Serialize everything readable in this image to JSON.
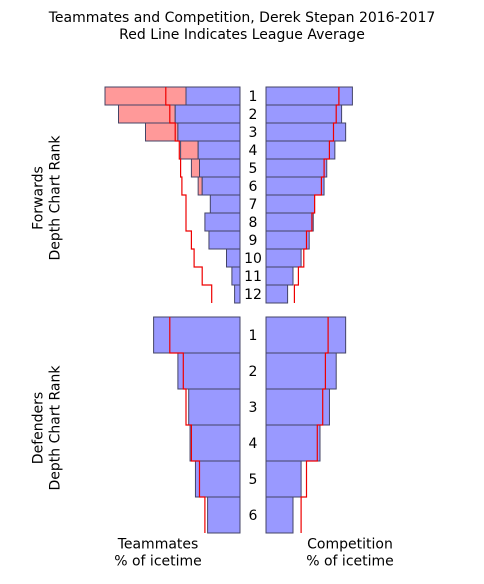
{
  "chart_data": {
    "type": "bar",
    "title": "Teammates and Competition, Derek Stepan 2016-2017",
    "subtitle": "Red Line Indicates League Average",
    "ylabel_forwards": "Forwards\nDepth Chart Rank",
    "ylabel_defenders": "Defenders\nDepth Chart Rank",
    "xlabel_teammates": "Teammates\n% of icetime",
    "xlabel_competition": "Competition\n% of icetime",
    "forwards": {
      "ranks": [
        "1",
        "2",
        "3",
        "4",
        "5",
        "6",
        "7",
        "8",
        "9",
        "10",
        "11",
        "12"
      ],
      "teammates_total": [
        100,
        90,
        70,
        44,
        36,
        31,
        22,
        26,
        23,
        10,
        6,
        4
      ],
      "teammates_blue": [
        40,
        48,
        46,
        31,
        30,
        28,
        22,
        26,
        23,
        10,
        6,
        4
      ],
      "teammates_league": [
        55,
        52,
        48,
        45,
        44,
        43,
        40,
        40,
        36,
        34,
        28,
        21
      ],
      "competition": [
        64,
        56,
        59,
        51,
        45,
        43,
        36,
        35,
        32,
        26,
        20,
        16
      ],
      "competition_league": [
        54,
        52,
        50,
        47,
        43,
        41,
        36,
        34,
        30,
        28,
        24,
        21
      ]
    },
    "defenders": {
      "ranks": [
        "1",
        "2",
        "3",
        "4",
        "5",
        "6"
      ],
      "teammates": [
        64,
        46,
        38,
        37,
        33,
        24
      ],
      "teammates_league": [
        52,
        42,
        40,
        36,
        30,
        26
      ],
      "competition": [
        59,
        52,
        47,
        40,
        26,
        20
      ],
      "competition_league": [
        46,
        44,
        42,
        38,
        30,
        26
      ]
    },
    "colors": {
      "blue_bar": "#9999ff",
      "red_bar": "#ff9999",
      "bar_edge": "#444466",
      "league_line": "#ee0000"
    }
  }
}
